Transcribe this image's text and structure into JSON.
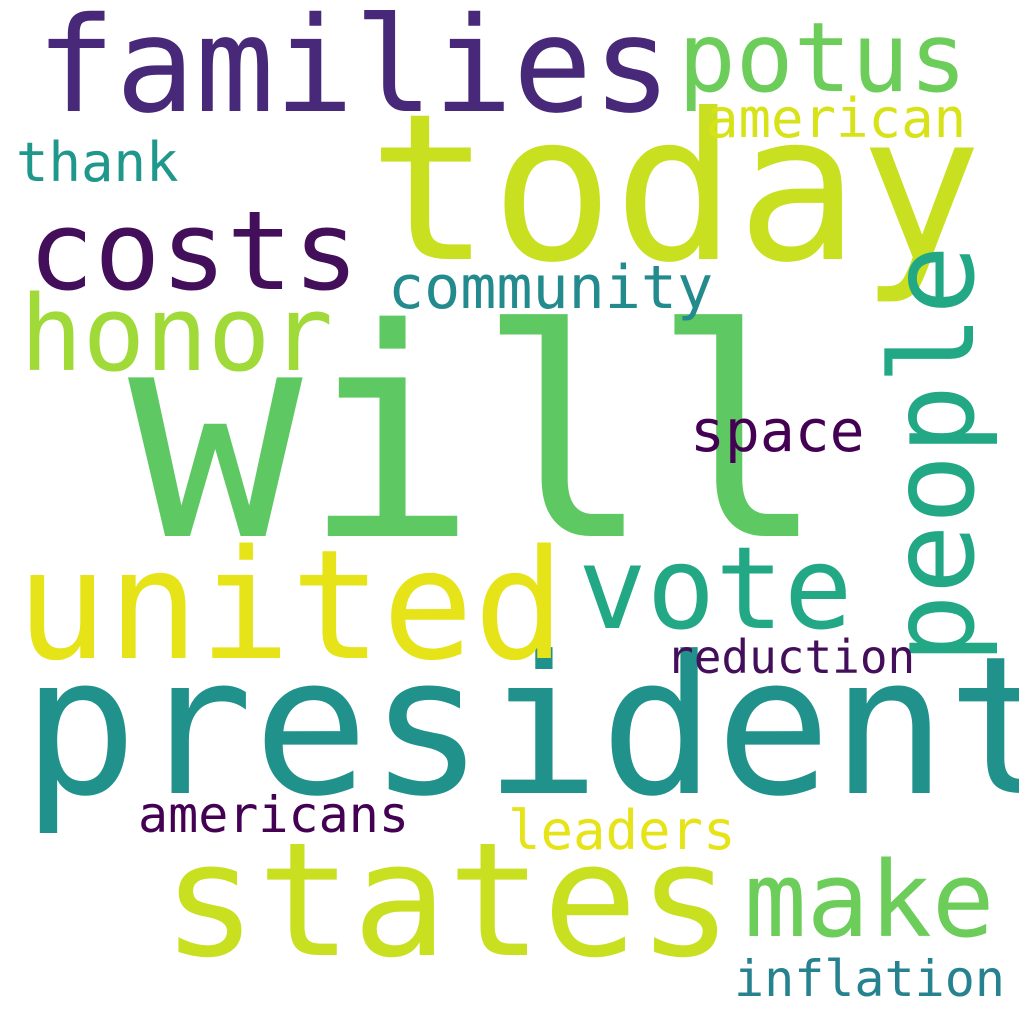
{
  "words": [
    {
      "id": "will",
      "text": "will",
      "color": "#5ec962"
    },
    {
      "id": "president",
      "text": "president",
      "color": "#21918c"
    },
    {
      "id": "today",
      "text": "today",
      "color": "#c8e020"
    },
    {
      "id": "states",
      "text": "states",
      "color": "#c8e020"
    },
    {
      "id": "united",
      "text": "united",
      "color": "#e6e419"
    },
    {
      "id": "families",
      "text": "families",
      "color": "#482878"
    },
    {
      "id": "costs",
      "text": "costs",
      "color": "#440f5a"
    },
    {
      "id": "people",
      "text": "people",
      "color": "#22a884"
    },
    {
      "id": "vote",
      "text": "vote",
      "color": "#22a884"
    },
    {
      "id": "honor",
      "text": "honor",
      "color": "#a0da39"
    },
    {
      "id": "potus",
      "text": "potus",
      "color": "#6ccd5a"
    },
    {
      "id": "make",
      "text": "make",
      "color": "#6ccd5a"
    },
    {
      "id": "community",
      "text": "community",
      "color": "#238a8d"
    },
    {
      "id": "space",
      "text": "space",
      "color": "#440154"
    },
    {
      "id": "american",
      "text": "american",
      "color": "#d8e219"
    },
    {
      "id": "thank",
      "text": "thank",
      "color": "#1f988b"
    },
    {
      "id": "reduction",
      "text": "reduction",
      "color": "#440f5a"
    },
    {
      "id": "americans",
      "text": "americans",
      "color": "#440154"
    },
    {
      "id": "leaders",
      "text": "leaders",
      "color": "#e6e419"
    },
    {
      "id": "inflation",
      "text": "inflation",
      "color": "#26828e"
    }
  ]
}
